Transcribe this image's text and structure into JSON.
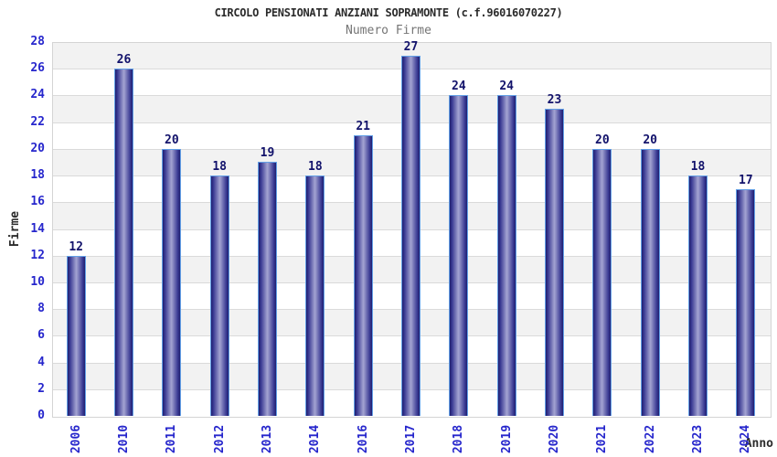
{
  "chart_data": {
    "type": "bar",
    "title": "CIRCOLO PENSIONATI ANZIANI SOPRAMONTE (c.f.96016070227)",
    "subtitle": "Numero Firme",
    "xlabel": "Anno",
    "ylabel": "Firme",
    "categories": [
      "2006",
      "2010",
      "2011",
      "2012",
      "2013",
      "2014",
      "2016",
      "2017",
      "2018",
      "2019",
      "2020",
      "2021",
      "2022",
      "2023",
      "2024"
    ],
    "values": [
      12,
      26,
      20,
      18,
      19,
      18,
      21,
      27,
      24,
      24,
      23,
      20,
      20,
      18,
      17
    ],
    "ylim": [
      0,
      28
    ],
    "ytick_step": 2,
    "grid": true,
    "legend_position": "none",
    "band_fill": "alternating-2-unit",
    "colors": {
      "tick_label": "#2626cc",
      "value_label": "#12126b",
      "title": "#2b2b2b",
      "subtitle": "#757575",
      "band_gray": "#f2f2f2",
      "band_white": "#ffffff",
      "grid_line": "#dadada",
      "plot_border": "#d4d4d4",
      "bar_outline": "#63a0e6",
      "bar_edge_dark": "#1f1f70",
      "bar_mid": "#3c3c94",
      "bar_center_light": "#a4a4d2"
    }
  }
}
